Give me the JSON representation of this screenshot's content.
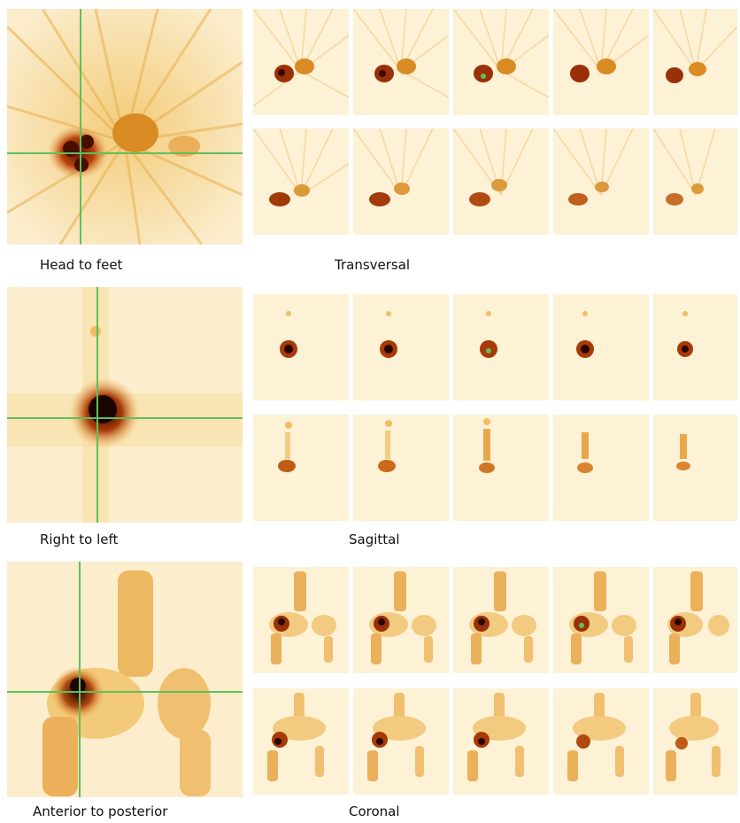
{
  "sections": [
    {
      "key": "transversal",
      "large_caption": "Head to feet",
      "thumb_caption": "Transversal"
    },
    {
      "key": "sagittal",
      "large_caption": "Right to left",
      "thumb_caption": "Sagittal"
    },
    {
      "key": "coronal",
      "large_caption": "Anterior to posterior",
      "thumb_caption": "Coronal"
    }
  ],
  "colors": {
    "background": "#ffffff",
    "tracer_light": "#f6d48a",
    "tracer_mid": "#e09a2a",
    "tracer_dark": "#8a2a06",
    "crosshair": "#5fbf5a"
  }
}
